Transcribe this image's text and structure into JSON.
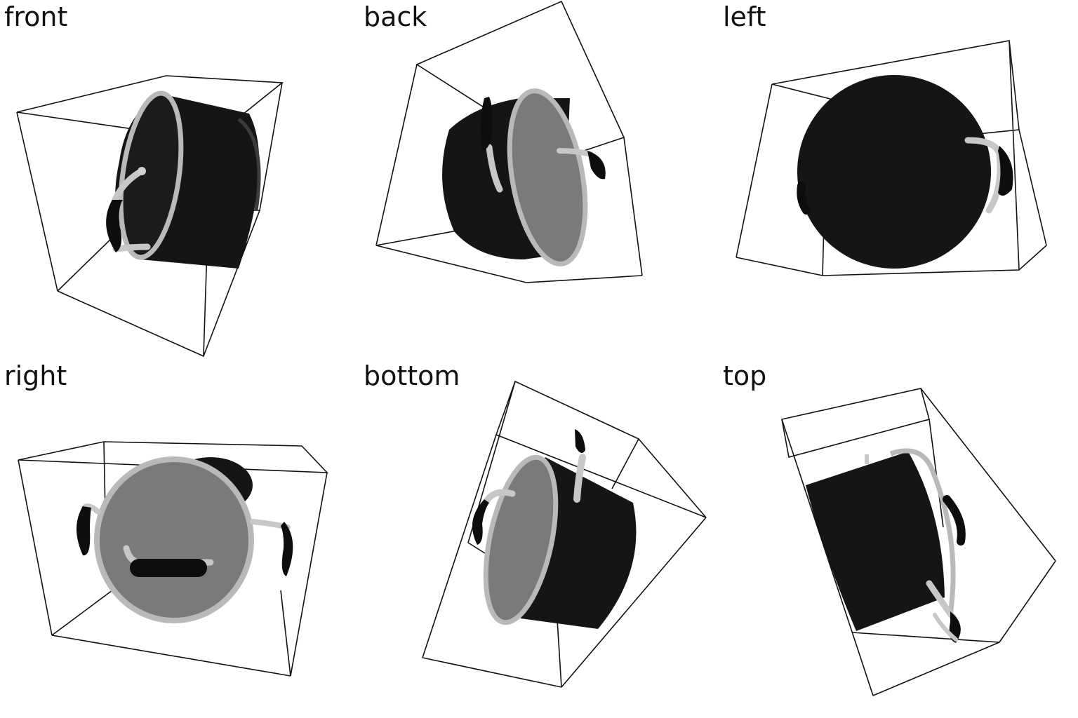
{
  "views": [
    {
      "label": "front"
    },
    {
      "label": "back"
    },
    {
      "label": "left"
    },
    {
      "label": "right"
    },
    {
      "label": "bottom"
    },
    {
      "label": "top"
    }
  ],
  "colors": {
    "pot_body": "#141614",
    "pot_shade": "#2a2d2b",
    "rim": "#b9b9b9",
    "lid_glass": "#7a7a7a",
    "handle": "#0d0d0d",
    "bracket": "#c7c7c7"
  },
  "icons": [
    "cooking-pot-render",
    "bounding-box-wireframe"
  ]
}
